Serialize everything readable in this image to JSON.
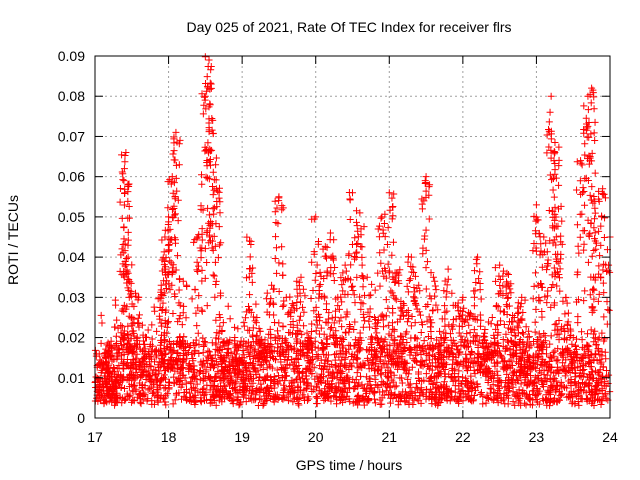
{
  "chart_data": {
    "type": "scatter",
    "title": "Day 025 of 2021, Rate Of TEC Index for receiver flrs",
    "xlabel": "GPS time / hours",
    "ylabel": "ROTI / TECUs",
    "xlim": [
      17,
      24
    ],
    "ylim": [
      0,
      0.09
    ],
    "x_ticks": [
      17,
      18,
      19,
      20,
      21,
      22,
      23,
      24
    ],
    "x_tick_labels": [
      "17",
      "18",
      "19",
      "20",
      "21",
      "22",
      "23",
      "24"
    ],
    "y_ticks": [
      0,
      0.01,
      0.02,
      0.03,
      0.04,
      0.05,
      0.06,
      0.07,
      0.08,
      0.09
    ],
    "y_tick_labels": [
      "0",
      "0.01",
      "0.02",
      "0.03",
      "0.04",
      "0.05",
      "0.06",
      "0.07",
      "0.08",
      "0.09"
    ],
    "grid": true,
    "marker": "+",
    "marker_color": "#ff0000",
    "series": [
      {
        "name": "ROTI",
        "color": "#ff0000",
        "x": [
          17.1,
          17.15,
          17.2,
          17.25,
          17.3,
          17.35,
          17.4,
          17.42,
          17.45,
          17.5,
          17.55,
          17.6,
          17.7,
          17.8,
          17.9,
          17.95,
          18.0,
          18.05,
          18.1,
          18.15,
          18.2,
          18.3,
          18.4,
          18.5,
          18.55,
          18.6,
          18.65,
          18.7,
          18.8,
          18.9,
          19.0,
          19.1,
          19.2,
          19.3,
          19.4,
          19.5,
          19.6,
          19.7,
          19.8,
          19.9,
          20.0,
          20.1,
          20.2,
          20.3,
          20.4,
          20.5,
          20.6,
          20.7,
          20.8,
          20.9,
          21.0,
          21.1,
          21.2,
          21.3,
          21.4,
          21.5,
          21.6,
          21.7,
          21.8,
          21.9,
          22.0,
          22.1,
          22.2,
          22.3,
          22.4,
          22.5,
          22.6,
          22.7,
          22.8,
          22.9,
          23.0,
          23.1,
          23.2,
          23.25,
          23.3,
          23.4,
          23.5,
          23.6,
          23.7,
          23.75,
          23.8,
          23.9,
          24.0
        ],
        "values": [
          0.009,
          0.016,
          0.011,
          0.008,
          0.01,
          0.023,
          0.062,
          0.066,
          0.04,
          0.025,
          0.031,
          0.014,
          0.02,
          0.012,
          0.033,
          0.045,
          0.05,
          0.06,
          0.071,
          0.02,
          0.034,
          0.018,
          0.045,
          0.08,
          0.089,
          0.074,
          0.057,
          0.025,
          0.012,
          0.02,
          0.015,
          0.044,
          0.025,
          0.018,
          0.033,
          0.055,
          0.03,
          0.028,
          0.035,
          0.02,
          0.05,
          0.042,
          0.046,
          0.03,
          0.038,
          0.056,
          0.051,
          0.035,
          0.025,
          0.05,
          0.056,
          0.036,
          0.028,
          0.04,
          0.033,
          0.06,
          0.035,
          0.02,
          0.037,
          0.028,
          0.03,
          0.026,
          0.04,
          0.022,
          0.025,
          0.038,
          0.036,
          0.025,
          0.03,
          0.015,
          0.053,
          0.045,
          0.08,
          0.066,
          0.052,
          0.03,
          0.02,
          0.064,
          0.08,
          0.082,
          0.044,
          0.057,
          0.045
        ],
        "baseline_band": [
          0.005,
          0.02
        ]
      }
    ]
  }
}
